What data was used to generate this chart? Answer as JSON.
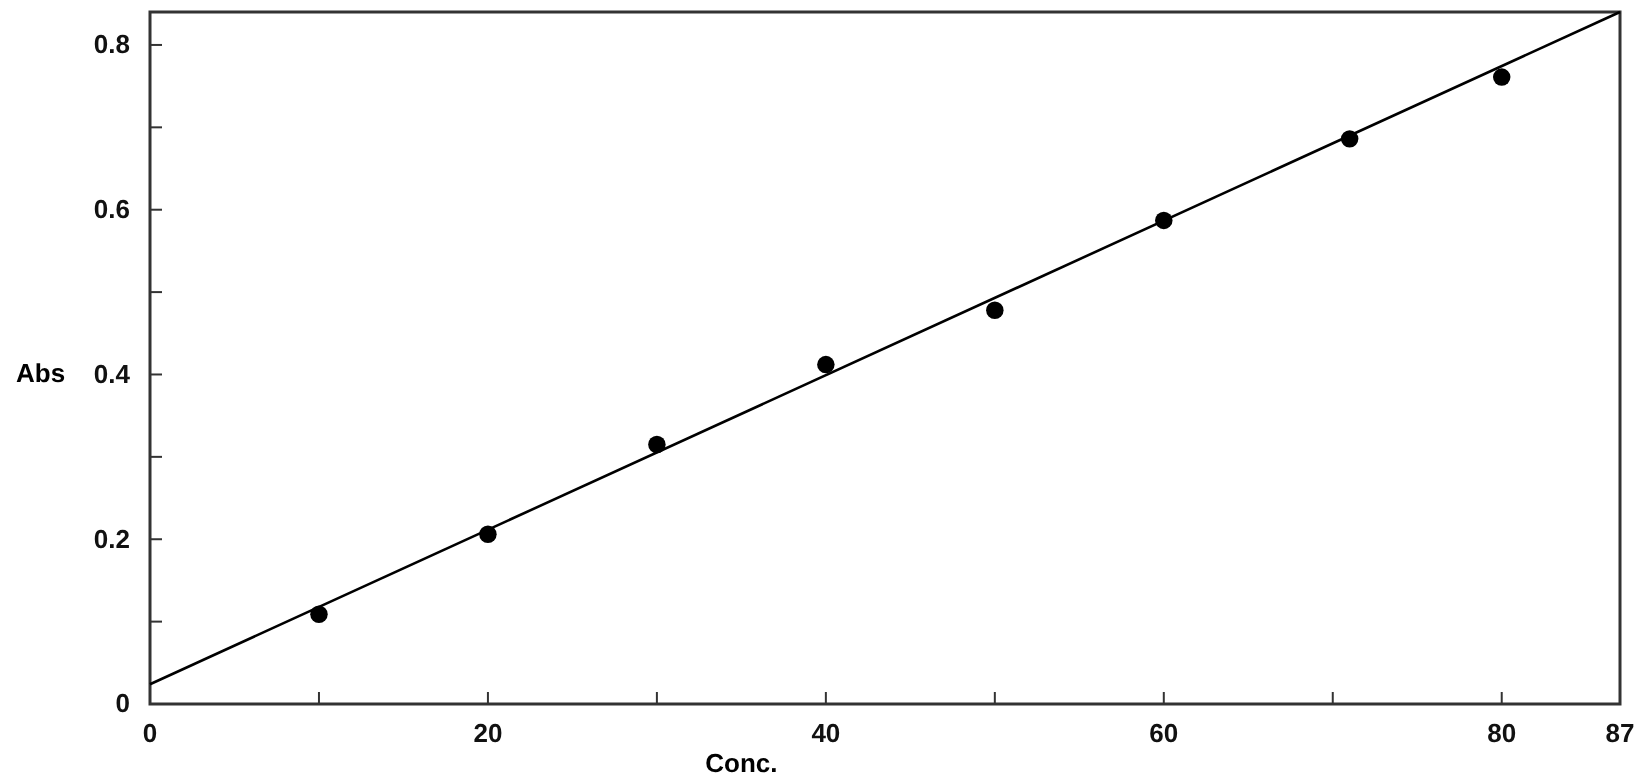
{
  "chart_data": {
    "type": "scatter",
    "xlabel": "Conc.",
    "ylabel": "Abs",
    "xlim": [
      0,
      87
    ],
    "ylim": [
      0,
      0.84
    ],
    "xticks": [
      0,
      {
        "value": 10,
        "label": null
      },
      20,
      {
        "value": 30,
        "label": null
      },
      40,
      {
        "value": 50,
        "label": null
      },
      60,
      {
        "value": 70,
        "label": null
      },
      80,
      87
    ],
    "yticks": [
      0,
      {
        "value": 0.1,
        "label": null
      },
      0.2,
      {
        "value": 0.3,
        "label": null
      },
      0.4,
      {
        "value": 0.5,
        "label": null
      },
      0.6,
      {
        "value": 0.7,
        "label": null
      },
      0.8
    ],
    "grid": false,
    "series": [
      {
        "marker": "circle",
        "color": "#000000",
        "x": [
          10,
          20,
          30,
          40,
          50,
          60,
          71,
          80
        ],
        "values": [
          0.109,
          0.206,
          0.315,
          0.412,
          0.478,
          0.587,
          0.686,
          0.761
        ]
      },
      {
        "type": "line",
        "color": "#000000",
        "x": [
          0,
          87
        ],
        "values": [
          0.024,
          0.84
        ]
      }
    ]
  }
}
